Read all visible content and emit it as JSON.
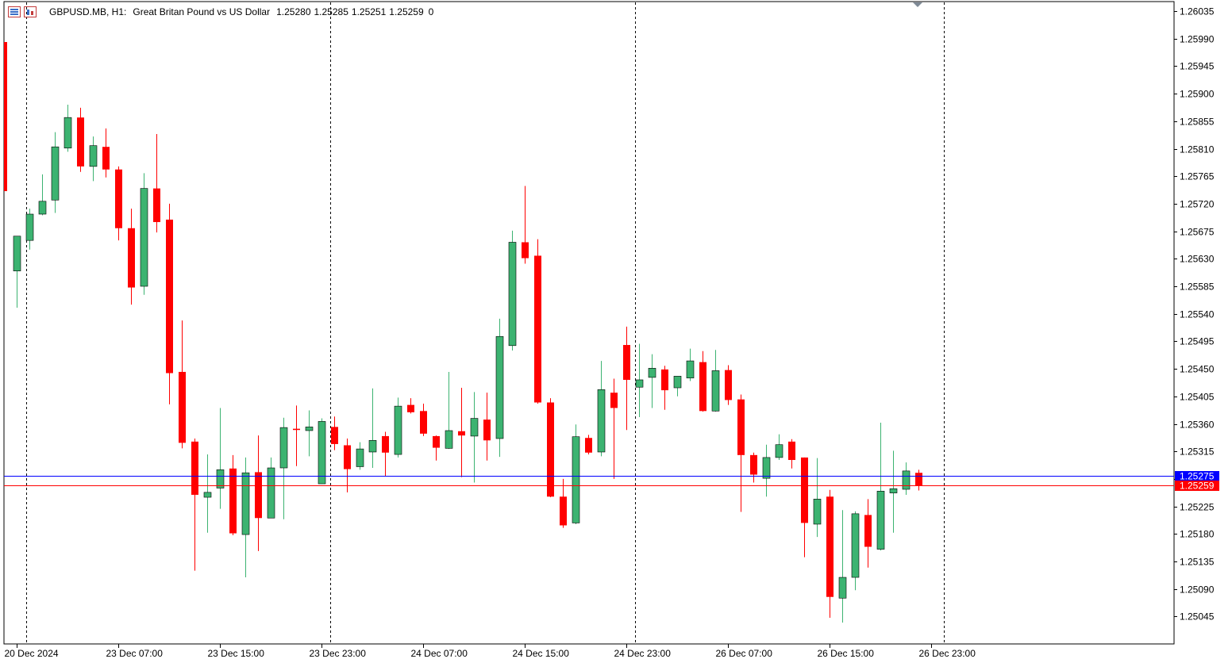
{
  "header": {
    "symbol": "GBPUSD.MB, H1:",
    "description": "Great Britan Pound vs US Dollar",
    "open": "1.25280",
    "high": "1.25285",
    "low": "1.25251",
    "close": "1.25259",
    "volume": "0"
  },
  "chart_data": {
    "type": "candlestick",
    "timeframe": "H1",
    "ylim": [
      1.2501,
      1.2605
    ],
    "y_ticks": [
      "1.26035",
      "1.25990",
      "1.25945",
      "1.25900",
      "1.25855",
      "1.25810",
      "1.25765",
      "1.25720",
      "1.25675",
      "1.25630",
      "1.25585",
      "1.25540",
      "1.25495",
      "1.25450",
      "1.25405",
      "1.25360",
      "1.25315",
      "1.25270",
      "1.25225",
      "1.25180",
      "1.25135",
      "1.25090",
      "1.25045"
    ],
    "x_ticks": [
      {
        "label": "20 Dec 2024",
        "index": 0
      },
      {
        "label": "23 Dec 07:00",
        "index": 8
      },
      {
        "label": "23 Dec 15:00",
        "index": 16
      },
      {
        "label": "23 Dec 23:00",
        "index": 24
      },
      {
        "label": "24 Dec 07:00",
        "index": 32
      },
      {
        "label": "24 Dec 15:00",
        "index": 40
      },
      {
        "label": "24 Dec 23:00",
        "index": 48
      },
      {
        "label": "26 Dec 07:00",
        "index": 56
      },
      {
        "label": "26 Dec 15:00",
        "index": 64
      },
      {
        "label": "26 Dec 23:00",
        "index": 72
      }
    ],
    "day_separators": [
      0.75,
      24.7,
      48.7,
      73
    ],
    "ask_price": "1.25275",
    "bid_price": "1.25259",
    "ask_value": 1.25275,
    "bid_value": 1.25259,
    "candles": [
      {
        "o": 1.2561,
        "h": 1.2566,
        "l": 1.2555,
        "c": 1.25667
      },
      {
        "o": 1.2566,
        "h": 1.25712,
        "l": 1.25645,
        "c": 1.25703
      },
      {
        "o": 1.25703,
        "h": 1.25768,
        "l": 1.25701,
        "c": 1.25724
      },
      {
        "o": 1.25726,
        "h": 1.25837,
        "l": 1.25705,
        "c": 1.25813
      },
      {
        "o": 1.25811,
        "h": 1.25882,
        "l": 1.25805,
        "c": 1.25861
      },
      {
        "o": 1.25861,
        "h": 1.25877,
        "l": 1.25772,
        "c": 1.25781
      },
      {
        "o": 1.25781,
        "h": 1.2583,
        "l": 1.25757,
        "c": 1.25815
      },
      {
        "o": 1.25813,
        "h": 1.25843,
        "l": 1.25763,
        "c": 1.25776
      },
      {
        "o": 1.25776,
        "h": 1.25781,
        "l": 1.2566,
        "c": 1.2568
      },
      {
        "o": 1.2568,
        "h": 1.25712,
        "l": 1.25555,
        "c": 1.25583
      },
      {
        "o": 1.25585,
        "h": 1.2577,
        "l": 1.25571,
        "c": 1.25745
      },
      {
        "o": 1.25745,
        "h": 1.25834,
        "l": 1.25673,
        "c": 1.2569
      },
      {
        "o": 1.25694,
        "h": 1.2572,
        "l": 1.25392,
        "c": 1.25443
      },
      {
        "o": 1.25445,
        "h": 1.25529,
        "l": 1.2532,
        "c": 1.25329
      },
      {
        "o": 1.25331,
        "h": 1.25336,
        "l": 1.2512,
        "c": 1.25244
      },
      {
        "o": 1.2524,
        "h": 1.2531,
        "l": 1.25182,
        "c": 1.25248
      },
      {
        "o": 1.25255,
        "h": 1.25386,
        "l": 1.25221,
        "c": 1.25285
      },
      {
        "o": 1.25287,
        "h": 1.25309,
        "l": 1.25178,
        "c": 1.25181
      },
      {
        "o": 1.25179,
        "h": 1.25305,
        "l": 1.25109,
        "c": 1.2528
      },
      {
        "o": 1.25281,
        "h": 1.25341,
        "l": 1.25152,
        "c": 1.25206
      },
      {
        "o": 1.25206,
        "h": 1.25305,
        "l": 1.25206,
        "c": 1.25288
      },
      {
        "o": 1.25288,
        "h": 1.2537,
        "l": 1.25204,
        "c": 1.25354
      },
      {
        "o": 1.25352,
        "h": 1.2539,
        "l": 1.25291,
        "c": 1.2535
      },
      {
        "o": 1.25349,
        "h": 1.25382,
        "l": 1.25307,
        "c": 1.25355
      },
      {
        "o": 1.25262,
        "h": 1.25369,
        "l": 1.25262,
        "c": 1.25364
      },
      {
        "o": 1.25355,
        "h": 1.25372,
        "l": 1.25317,
        "c": 1.25327
      },
      {
        "o": 1.25325,
        "h": 1.25336,
        "l": 1.25248,
        "c": 1.25286
      },
      {
        "o": 1.2529,
        "h": 1.2533,
        "l": 1.25285,
        "c": 1.25319
      },
      {
        "o": 1.25314,
        "h": 1.25418,
        "l": 1.25288,
        "c": 1.25333
      },
      {
        "o": 1.2534,
        "h": 1.25347,
        "l": 1.25275,
        "c": 1.25313
      },
      {
        "o": 1.2531,
        "h": 1.25403,
        "l": 1.25305,
        "c": 1.25389
      },
      {
        "o": 1.25391,
        "h": 1.25402,
        "l": 1.25377,
        "c": 1.25379
      },
      {
        "o": 1.25381,
        "h": 1.25393,
        "l": 1.2534,
        "c": 1.25344
      },
      {
        "o": 1.2534,
        "h": 1.25341,
        "l": 1.253,
        "c": 1.25321
      },
      {
        "o": 1.2532,
        "h": 1.25445,
        "l": 1.25319,
        "c": 1.25349
      },
      {
        "o": 1.25348,
        "h": 1.25419,
        "l": 1.25273,
        "c": 1.25341
      },
      {
        "o": 1.2534,
        "h": 1.25412,
        "l": 1.25264,
        "c": 1.25369
      },
      {
        "o": 1.25367,
        "h": 1.25411,
        "l": 1.253,
        "c": 1.25333
      },
      {
        "o": 1.25336,
        "h": 1.25532,
        "l": 1.25306,
        "c": 1.25503
      },
      {
        "o": 1.25488,
        "h": 1.25676,
        "l": 1.2548,
        "c": 1.25657
      },
      {
        "o": 1.25657,
        "h": 1.25749,
        "l": 1.25622,
        "c": 1.25631
      },
      {
        "o": 1.25635,
        "h": 1.25662,
        "l": 1.25393,
        "c": 1.25395
      },
      {
        "o": 1.25395,
        "h": 1.25402,
        "l": 1.2524,
        "c": 1.25241
      },
      {
        "o": 1.25241,
        "h": 1.2527,
        "l": 1.2519,
        "c": 1.25194
      },
      {
        "o": 1.25198,
        "h": 1.25359,
        "l": 1.25196,
        "c": 1.25339
      },
      {
        "o": 1.25337,
        "h": 1.25342,
        "l": 1.2531,
        "c": 1.25313
      },
      {
        "o": 1.25314,
        "h": 1.25463,
        "l": 1.25307,
        "c": 1.25416
      },
      {
        "o": 1.25411,
        "h": 1.25434,
        "l": 1.2527,
        "c": 1.25386
      },
      {
        "o": 1.25489,
        "h": 1.25519,
        "l": 1.2535,
        "c": 1.25432
      },
      {
        "o": 1.2542,
        "h": 1.25491,
        "l": 1.25371,
        "c": 1.25432
      },
      {
        "o": 1.25436,
        "h": 1.25474,
        "l": 1.25386,
        "c": 1.25451
      },
      {
        "o": 1.25449,
        "h": 1.25455,
        "l": 1.25383,
        "c": 1.25415
      },
      {
        "o": 1.25419,
        "h": 1.25435,
        "l": 1.25405,
        "c": 1.25438
      },
      {
        "o": 1.25435,
        "h": 1.25483,
        "l": 1.2543,
        "c": 1.25463
      },
      {
        "o": 1.25461,
        "h": 1.25479,
        "l": 1.2538,
        "c": 1.25381
      },
      {
        "o": 1.25381,
        "h": 1.25481,
        "l": 1.2538,
        "c": 1.25447
      },
      {
        "o": 1.25448,
        "h": 1.25456,
        "l": 1.25391,
        "c": 1.25399
      },
      {
        "o": 1.254,
        "h": 1.25408,
        "l": 1.25216,
        "c": 1.25309
      },
      {
        "o": 1.25309,
        "h": 1.25313,
        "l": 1.25264,
        "c": 1.25277
      },
      {
        "o": 1.25271,
        "h": 1.25326,
        "l": 1.25241,
        "c": 1.25305
      },
      {
        "o": 1.25305,
        "h": 1.25343,
        "l": 1.25301,
        "c": 1.25326
      },
      {
        "o": 1.25331,
        "h": 1.25335,
        "l": 1.25287,
        "c": 1.25301
      },
      {
        "o": 1.25305,
        "h": 1.25305,
        "l": 1.25142,
        "c": 1.25198
      },
      {
        "o": 1.25196,
        "h": 1.25304,
        "l": 1.25175,
        "c": 1.25237
      },
      {
        "o": 1.25241,
        "h": 1.25252,
        "l": 1.25043,
        "c": 1.25077
      },
      {
        "o": 1.25075,
        "h": 1.25219,
        "l": 1.25035,
        "c": 1.25109
      },
      {
        "o": 1.25109,
        "h": 1.25217,
        "l": 1.25088,
        "c": 1.25213
      },
      {
        "o": 1.25211,
        "h": 1.25237,
        "l": 1.25125,
        "c": 1.25159
      },
      {
        "o": 1.25155,
        "h": 1.25362,
        "l": 1.25153,
        "c": 1.2525
      },
      {
        "o": 1.25247,
        "h": 1.25316,
        "l": 1.25182,
        "c": 1.25254
      },
      {
        "o": 1.25253,
        "h": 1.25297,
        "l": 1.25244,
        "c": 1.25283
      },
      {
        "o": 1.2528,
        "h": 1.25285,
        "l": 1.25251,
        "c": 1.25259
      }
    ]
  },
  "colors": {
    "bull": "#3cb371",
    "bear": "#ff0000",
    "grid": "#000000",
    "ask_line": "#0000ff",
    "bid_line": "#ff0000",
    "ask_label_bg": "#0000ff",
    "bid_label_bg": "#ff0000",
    "axis_text": "#000000"
  }
}
